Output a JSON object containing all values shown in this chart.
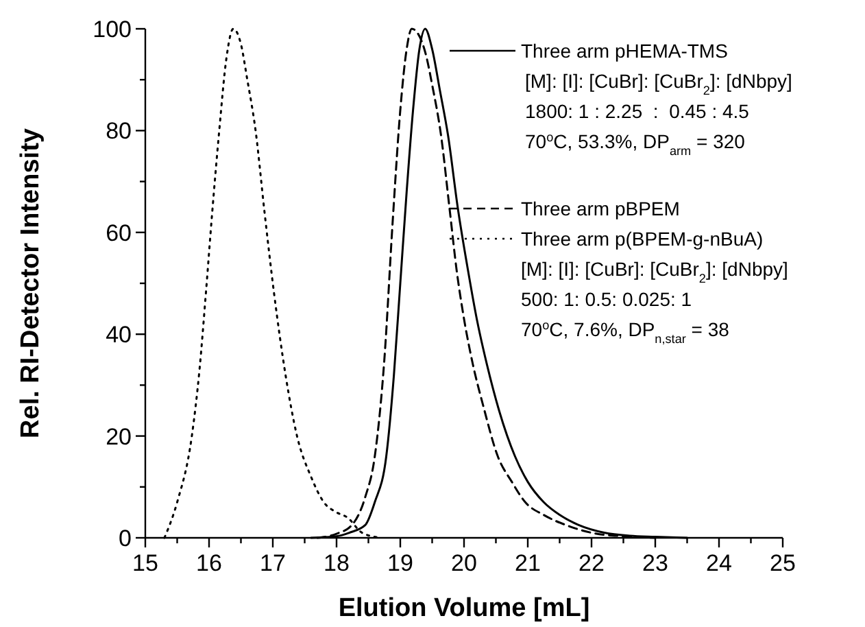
{
  "chart_data": {
    "type": "line",
    "xlabel": "Elution Volume [mL]",
    "ylabel": "Rel. RI-Detector Intensity",
    "xlim": [
      15,
      25
    ],
    "ylim": [
      0,
      100
    ],
    "xticks": [
      15,
      {
        "value": 15.5,
        "label": null
      },
      16,
      {
        "value": 16.5,
        "label": null
      },
      17,
      {
        "value": 17.5,
        "label": null
      },
      18,
      {
        "value": 18.5,
        "label": null
      },
      19,
      {
        "value": 19.5,
        "label": null
      },
      20,
      {
        "value": 20.5,
        "label": null
      },
      21,
      {
        "value": 21.5,
        "label": null
      },
      22,
      {
        "value": 22.5,
        "label": null
      },
      23,
      {
        "value": 23.5,
        "label": null
      },
      24,
      {
        "value": 24.5,
        "label": null
      },
      25
    ],
    "yticks": [
      0,
      {
        "value": 10,
        "label": null
      },
      20,
      {
        "value": 30,
        "label": null
      },
      40,
      {
        "value": 50,
        "label": null
      },
      60,
      {
        "value": 70,
        "label": null
      },
      80,
      {
        "value": 90,
        "label": null
      },
      100
    ],
    "grid": false,
    "legend": "top right",
    "marker": "none",
    "series": [
      {
        "name": "Three arm pHEMA-TMS",
        "color": "#000000",
        "line_style": "solid",
        "x": [
          17.6,
          18.0,
          18.2,
          18.45,
          18.6,
          18.78,
          18.9,
          19.0,
          19.1,
          19.2,
          19.3,
          19.39,
          19.5,
          19.62,
          19.75,
          19.9,
          20.07,
          20.2,
          20.36,
          20.55,
          20.8,
          21.0,
          21.25,
          21.5,
          21.8,
          22.2,
          22.6,
          23.0,
          23.5
        ],
        "values": [
          0,
          0.3,
          1,
          2.5,
          7,
          16,
          32,
          50,
          68,
          84,
          96,
          100,
          96,
          88,
          79,
          65,
          52,
          43,
          34,
          25,
          16,
          11,
          7,
          4.5,
          2.5,
          1,
          0.4,
          0.2,
          0
        ]
      },
      {
        "name": "Three arm pBPEM",
        "color": "#000000",
        "line_style": "dashed",
        "x": [
          17.7,
          18.0,
          18.24,
          18.45,
          18.6,
          18.75,
          18.88,
          19.0,
          19.1,
          19.18,
          19.28,
          19.4,
          19.5,
          19.64,
          19.77,
          19.89,
          20.0,
          20.14,
          20.3,
          20.53,
          20.75,
          20.96,
          21.25,
          21.6,
          22.0,
          22.5,
          23.0
        ],
        "values": [
          0,
          0.8,
          2.5,
          8,
          16,
          35,
          62,
          84,
          96,
          100,
          99,
          95,
          89,
          79,
          65,
          52,
          43,
          34,
          26,
          16,
          11,
          7,
          4.5,
          2.5,
          1,
          0.3,
          0
        ]
      },
      {
        "name": "Three arm p(BPEM-g-nBuA)",
        "color": "#000000",
        "line_style": "dotted",
        "x": [
          15.3,
          15.5,
          15.73,
          15.85,
          15.95,
          16.05,
          16.16,
          16.27,
          16.38,
          16.5,
          16.6,
          16.73,
          16.87,
          17.02,
          17.2,
          17.38,
          17.6,
          17.8,
          18.0,
          18.17,
          18.4,
          18.7
        ],
        "values": [
          0,
          7,
          20,
          33,
          48,
          64,
          80,
          94,
          100,
          97,
          90,
          80,
          64,
          48,
          32,
          20,
          12,
          7,
          5,
          4,
          1,
          0
        ]
      }
    ],
    "annotations": [
      "[M]: [I]: [CuBr]: [CuBr$_{2}$]: [dNbpy]",
      "1800: 1 : 2.25  :  0.45 : 4.5",
      "70$^{o}$C, 53.3%, DP$_{arm}$ = 320",
      "[M]: [I]: [CuBr]: [CuBr$_{2}$]: [dNbpy]",
      "500: 1: 0.5: 0.025: 1",
      "70$^{o}$C, 7.6%, DP$_{n,star}$ = 38"
    ]
  }
}
